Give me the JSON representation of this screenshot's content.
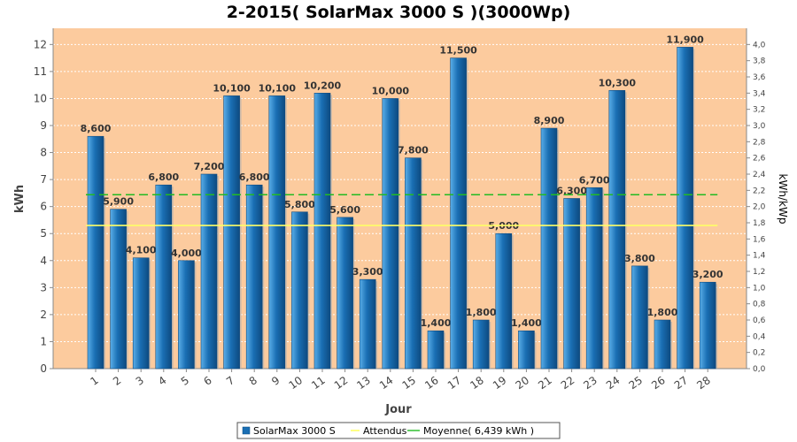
{
  "chart_data": {
    "type": "bar",
    "title": "2-2015( SolarMax 3000 S )(3000Wp)",
    "xlabel": "Jour",
    "ylabel": "kWh",
    "y2label": "kWh/kWp",
    "ylim": [
      0,
      12.6
    ],
    "y2lim": [
      0,
      4.2
    ],
    "yticks": [
      0,
      1,
      2,
      3,
      4,
      5,
      6,
      7,
      8,
      9,
      10,
      11,
      12
    ],
    "y2ticks": [
      "0,0",
      "0,2",
      "0,4",
      "0,6",
      "0,8",
      "1,0",
      "1,2",
      "1,4",
      "1,6",
      "1,8",
      "2,0",
      "2,2",
      "2,4",
      "2,6",
      "2,8",
      "3,0",
      "3,2",
      "3,4",
      "3,6",
      "3,8",
      "4,0"
    ],
    "grid": true,
    "legend_position": "bottom",
    "categories": [
      "1",
      "2",
      "3",
      "4",
      "5",
      "6",
      "7",
      "8",
      "9",
      "10",
      "11",
      "12",
      "13",
      "14",
      "15",
      "16",
      "17",
      "18",
      "19",
      "20",
      "21",
      "22",
      "23",
      "24",
      "25",
      "26",
      "27",
      "28"
    ],
    "series": [
      {
        "name": "SolarMax 3000 S",
        "type": "bar",
        "color": "#1a6fb4",
        "values": [
          8.6,
          5.9,
          4.1,
          6.8,
          4.0,
          7.2,
          10.1,
          6.8,
          10.1,
          5.8,
          10.2,
          5.6,
          3.3,
          10.0,
          7.8,
          1.4,
          11.5,
          1.8,
          5.0,
          1.4,
          8.9,
          6.3,
          6.7,
          10.3,
          3.8,
          1.8,
          11.9,
          3.2
        ],
        "labels": [
          "8,600",
          "5,900",
          "4,100",
          "6,800",
          "4,000",
          "7,200",
          "10,100",
          "6,800",
          "10,100",
          "5,800",
          "10,200",
          "5,600",
          "3,300",
          "10,000",
          "7,800",
          "1,400",
          "11,500",
          "1,800",
          "5,000",
          "1,400",
          "8,900",
          "6,300",
          "6,700",
          "10,300",
          "3,800",
          "1,800",
          "11,900",
          "3,200"
        ]
      },
      {
        "name": "Attendus",
        "type": "line",
        "color": "#ffff66",
        "value": 5.3
      },
      {
        "name": "Moyenne( 6,439 kWh )",
        "type": "line",
        "color": "#22bb22",
        "value": 6.439
      }
    ]
  }
}
